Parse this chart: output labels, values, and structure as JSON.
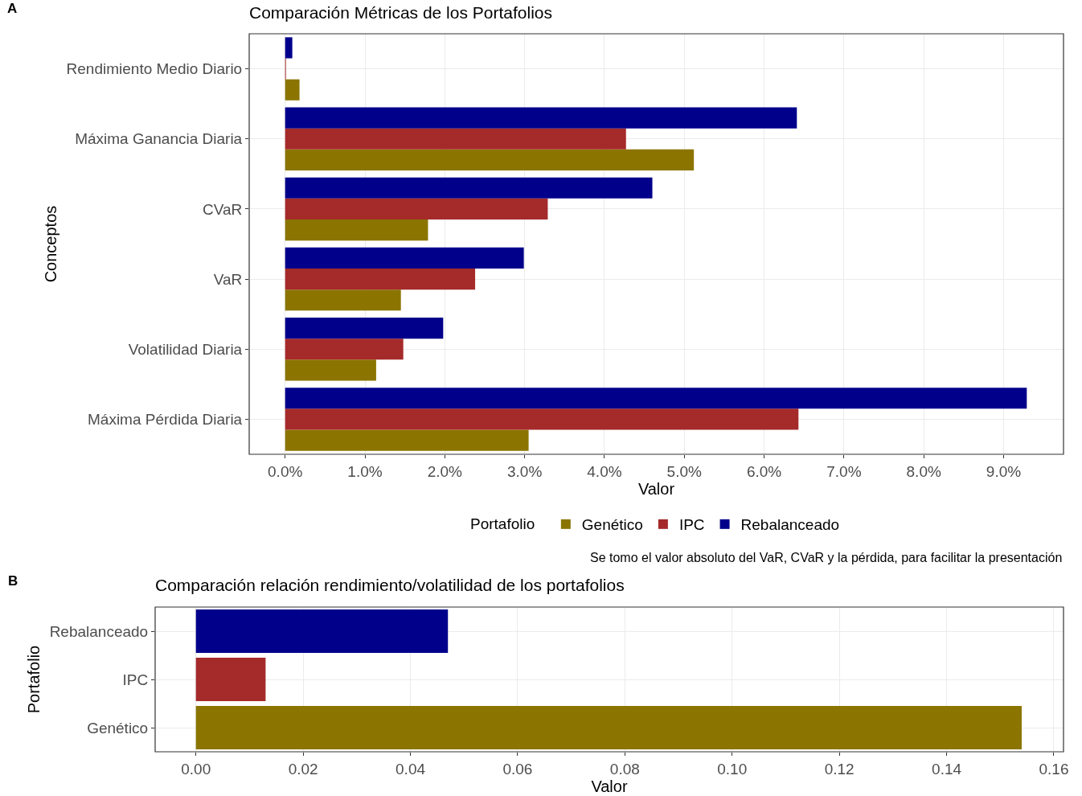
{
  "chart_data": [
    {
      "type": "bar",
      "orientation": "horizontal",
      "title": "Comparación Métricas de los Portafolios",
      "xlabel": "Valor",
      "ylabel": "Conceptos",
      "legend_title": "Portafolio",
      "legend": "bottom",
      "grid": true,
      "categories": [
        "Rendimiento Medio Diario",
        "Máxima Ganancia Diaria",
        "CVaR",
        "VaR",
        "Volatilidad Diaria",
        "Máxima Pérdida Diaria"
      ],
      "series": [
        {
          "name": "Genético",
          "color": "#8b7500",
          "values": [
            0.18,
            5.12,
            1.79,
            1.45,
            1.14,
            3.05
          ]
        },
        {
          "name": "IPC",
          "color": "#a52a2a",
          "values": [
            0.01,
            4.27,
            3.29,
            2.38,
            1.48,
            6.43
          ]
        },
        {
          "name": "Rebalanceado",
          "color": "#00008b",
          "values": [
            0.09,
            6.41,
            4.6,
            2.99,
            1.98,
            9.29
          ]
        }
      ],
      "xlim": [
        -0.45,
        9.75
      ],
      "xticks": [
        {
          "value": 0,
          "label": "0.0%"
        },
        {
          "value": 1,
          "label": "1.0%"
        },
        {
          "value": 2,
          "label": "2.0%"
        },
        {
          "value": 3,
          "label": "3.0%"
        },
        {
          "value": 4,
          "label": "4.0%"
        },
        {
          "value": 5,
          "label": "5.0%"
        },
        {
          "value": 6,
          "label": "6.0%"
        },
        {
          "value": 7,
          "label": "7.0%"
        },
        {
          "value": 8,
          "label": "8.0%"
        },
        {
          "value": 9,
          "label": "9.0%"
        }
      ],
      "annotations": [
        "A",
        "Se tomo el valor absoluto del VaR, CVaR y la pérdida, para facilitar la presentación"
      ]
    },
    {
      "type": "bar",
      "orientation": "horizontal",
      "title": "Comparación relación rendimiento/volatilidad de los portafolios",
      "xlabel": "Valor",
      "ylabel": "Portafolio",
      "grid": true,
      "categories": [
        "Rebalanceado",
        "IPC",
        "Genético"
      ],
      "values": [
        0.047,
        0.013,
        0.154
      ],
      "colors": [
        "#00008b",
        "#a52a2a",
        "#8b7500"
      ],
      "xlim": [
        -0.0076,
        0.1618
      ],
      "xticks": [
        {
          "value": 0,
          "label": "0.00"
        },
        {
          "value": 0.02,
          "label": "0.02"
        },
        {
          "value": 0.04,
          "label": "0.04"
        },
        {
          "value": 0.06,
          "label": "0.06"
        },
        {
          "value": 0.08,
          "label": "0.08"
        },
        {
          "value": 0.1,
          "label": "0.10"
        },
        {
          "value": 0.12,
          "label": "0.12"
        },
        {
          "value": 0.14,
          "label": "0.14"
        },
        {
          "value": 0.16,
          "label": "0.16"
        }
      ],
      "annotations": [
        "B"
      ]
    }
  ]
}
